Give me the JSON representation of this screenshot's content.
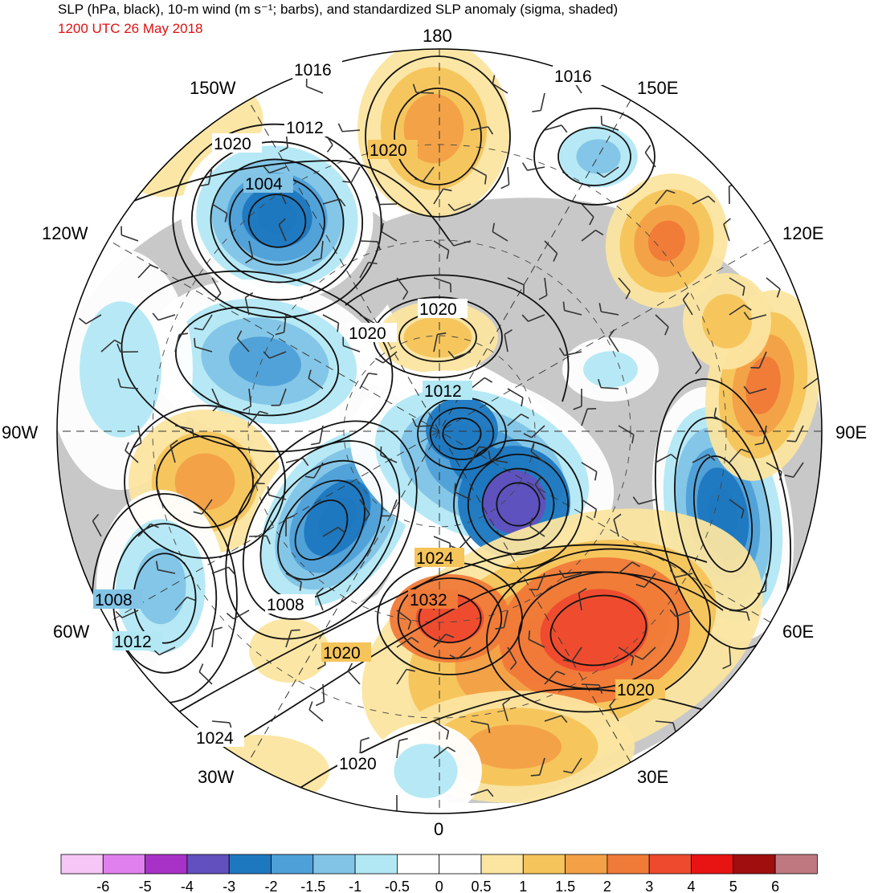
{
  "header": {
    "title": "SLP (hPa, black), 10-m wind (m s⁻¹; barbs), and standardized SLP anomaly (sigma, shaded)",
    "subtitle": "1200 UTC 26 May 2018",
    "subtitle_color": "#e01010"
  },
  "map": {
    "projection": "north polar stereographic",
    "longitude_labels": [
      "180",
      "150E",
      "120E",
      "90E",
      "60E",
      "30E",
      "0",
      "30W",
      "60W",
      "90W",
      "120W",
      "150W"
    ],
    "isobar_labels": [
      "1016",
      "1016",
      "1012",
      "1020",
      "1020",
      "1004",
      "1020",
      "1020",
      "1012",
      "1024",
      "1032",
      "1008",
      "1008",
      "1012",
      "1020",
      "1020",
      "1024",
      "1020"
    ],
    "land_color": "#c8c8c8",
    "ocean_color": "#ffffff",
    "centers": [
      {
        "name": "low-gulf-of-alaska",
        "sigma": -3,
        "pressure": "1004"
      },
      {
        "name": "low-canadian-archipelago",
        "sigma": -2
      },
      {
        "name": "high-hudson-bay",
        "sigma": 1
      },
      {
        "name": "low-greenland",
        "sigma": -3,
        "pressure": "1008"
      },
      {
        "name": "low-labrador",
        "sigma": -2,
        "pressure": "1008"
      },
      {
        "name": "low-arctic-basin",
        "sigma": -2.5,
        "pressure": "1012"
      },
      {
        "name": "low-barents-sea",
        "sigma": -3
      },
      {
        "name": "high-north-pole",
        "sigma": 1,
        "pressure": "1020"
      },
      {
        "name": "high-bering-strait",
        "sigma": 1.5,
        "pressure": "1020"
      },
      {
        "name": "low-east-siberian-sea",
        "sigma": -1.5
      },
      {
        "name": "low-west-siberia",
        "sigma": -3
      },
      {
        "name": "high-scandinavia",
        "sigma": 3,
        "pressure": "1032"
      },
      {
        "name": "high-eastern-europe",
        "sigma": 3
      },
      {
        "name": "high-central-siberia",
        "sigma": 1.5
      },
      {
        "name": "high-mongolia",
        "sigma": 2
      }
    ]
  },
  "colorbar": {
    "labels": [
      "-6",
      "-5",
      "-4",
      "-3",
      "-2",
      "-1.5",
      "-1",
      "-0.5",
      "0",
      "0.5",
      "1",
      "1.5",
      "2",
      "3",
      "4",
      "5",
      "6"
    ],
    "colors": [
      "#f6c6f6",
      "#e080ee",
      "#a832c8",
      "#6250be",
      "#1e78c0",
      "#4ea0d8",
      "#82c4e6",
      "#b2e8f4",
      "#ffffff",
      "#ffffff",
      "#fbe5a0",
      "#f5c45a",
      "#f3a046",
      "#f07a38",
      "#ee4a2e",
      "#e81414",
      "#a00e0e",
      "#c07880"
    ]
  }
}
